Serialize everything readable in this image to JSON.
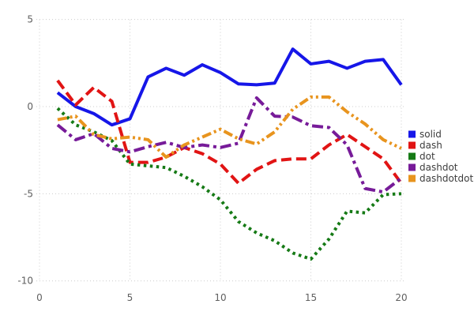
{
  "chart_data": {
    "type": "line",
    "title": "",
    "xlabel": "",
    "ylabel": "",
    "xlim": [
      0,
      21
    ],
    "ylim": [
      -10,
      5
    ],
    "grid": true,
    "legend_position": "right",
    "x_ticks": [
      0,
      5,
      10,
      15,
      20
    ],
    "y_ticks": [
      5,
      0,
      -5,
      -10
    ],
    "x": [
      1,
      2,
      3,
      4,
      5,
      6,
      7,
      8,
      9,
      10,
      11,
      12,
      13,
      14,
      15,
      16,
      17,
      18,
      19,
      20
    ],
    "series": [
      {
        "name": "solid",
        "style": "solid",
        "color": "#1616e8",
        "values": [
          0.8,
          0.0,
          -0.4,
          -1.05,
          -0.7,
          1.7,
          2.2,
          1.8,
          2.4,
          1.95,
          1.3,
          1.25,
          1.35,
          3.3,
          2.45,
          2.6,
          2.2,
          2.6,
          2.7,
          1.25
        ]
      },
      {
        "name": "dash",
        "style": "dash",
        "color": "#e11414",
        "values": [
          1.5,
          0.1,
          1.1,
          0.3,
          -3.2,
          -3.2,
          -2.9,
          -2.35,
          -2.7,
          -3.3,
          -4.4,
          -3.6,
          -3.1,
          -3.0,
          -3.0,
          -2.2,
          -1.6,
          -2.3,
          -3.0,
          -4.4
        ]
      },
      {
        "name": "dot",
        "style": "dot",
        "color": "#167a16",
        "values": [
          -0.1,
          -1.05,
          -1.45,
          -1.95,
          -3.3,
          -3.4,
          -3.5,
          -4.0,
          -4.6,
          -5.35,
          -6.6,
          -7.25,
          -7.7,
          -8.4,
          -8.75,
          -7.6,
          -6.0,
          -6.1,
          -5.05,
          -5.0
        ]
      },
      {
        "name": "dashdot",
        "style": "dashdot",
        "color": "#771b99",
        "values": [
          -1.05,
          -1.9,
          -1.55,
          -2.4,
          -2.6,
          -2.3,
          -2.05,
          -2.35,
          -2.2,
          -2.35,
          -2.1,
          0.5,
          -0.55,
          -0.6,
          -1.1,
          -1.2,
          -2.2,
          -4.7,
          -4.9,
          -4.1
        ]
      },
      {
        "name": "dashdotdot",
        "style": "dashdotdot",
        "color": "#e8941e",
        "values": [
          -0.75,
          -0.55,
          -1.6,
          -1.85,
          -1.75,
          -1.9,
          -2.9,
          -2.2,
          -1.75,
          -1.3,
          -1.85,
          -2.15,
          -1.45,
          -0.15,
          0.55,
          0.55,
          -0.3,
          -1.0,
          -1.9,
          -2.4
        ]
      }
    ]
  },
  "colors": {
    "background": "#ffffff",
    "grid": "#cccccc",
    "tick_label": "#5f5f5f",
    "legend_text": "#3d3d3d"
  }
}
